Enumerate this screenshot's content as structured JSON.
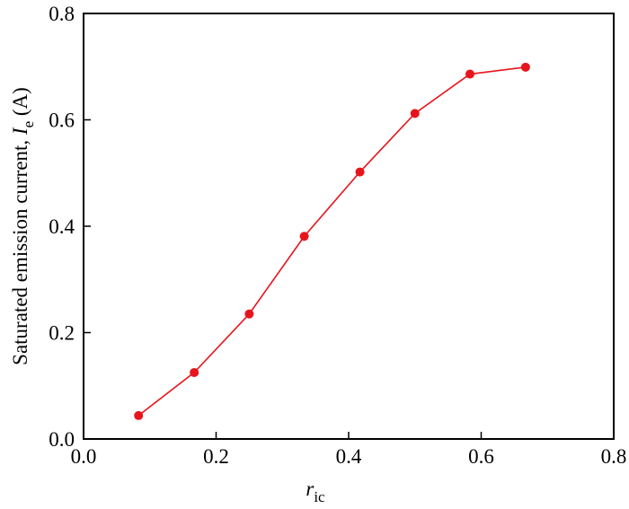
{
  "chart_data": {
    "type": "line",
    "xlabel": {
      "symbol": "r",
      "subscript": "ic"
    },
    "ylabel": {
      "text": "Saturated emission current, ",
      "symbol": "I",
      "subscript": "e",
      "unit": " (A)"
    },
    "x": [
      0.083,
      0.167,
      0.25,
      0.333,
      0.417,
      0.5,
      0.583,
      0.667
    ],
    "series": [
      {
        "color": "#e8141c",
        "values": [
          0.044,
          0.125,
          0.235,
          0.381,
          0.502,
          0.612,
          0.686,
          0.699
        ]
      }
    ],
    "xlim": [
      0,
      0.8
    ],
    "ylim": [
      0,
      0.8
    ],
    "xticks": [
      {
        "value": 0,
        "label": "0.0"
      },
      0.2,
      0.4,
      0.6,
      0.8
    ],
    "yticks": [
      {
        "value": 0,
        "label": "0.0"
      },
      0.2,
      0.4,
      0.6,
      0.8
    ],
    "grid": false
  }
}
